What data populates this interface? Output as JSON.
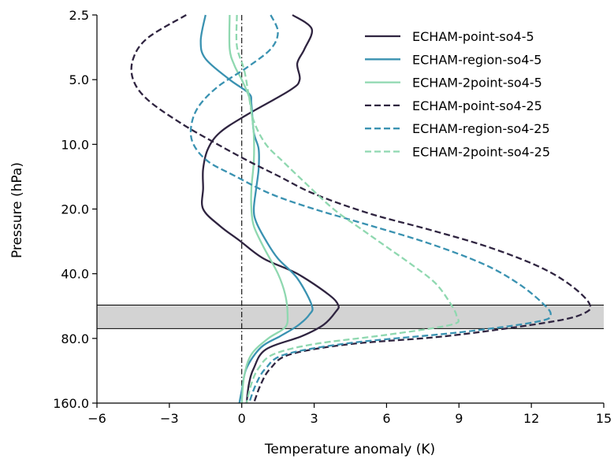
{
  "chart_data": {
    "type": "line",
    "title": "",
    "xlabel": "Temperature anomaly (K)",
    "ylabel": "Pressure (hPa)",
    "xlim": [
      -6,
      15
    ],
    "ylim": [
      2.5,
      160
    ],
    "y_scale": "log",
    "y_inverted": true,
    "x_ticks": [
      "−6",
      "−3",
      "0",
      "3",
      "6",
      "9",
      "12",
      "15"
    ],
    "x_tick_values": [
      -6,
      -3,
      0,
      3,
      6,
      9,
      12,
      15
    ],
    "y_ticks": [
      "2.5",
      "5.0",
      "10.0",
      "20.0",
      "40.0",
      "80.0",
      "160.0"
    ],
    "y_tick_values": [
      2.5,
      5,
      10,
      20,
      40,
      80,
      160
    ],
    "zero_line": {
      "x": 0,
      "style": "dashdot",
      "color": "#000000"
    },
    "shaded_band": {
      "p_top": 56,
      "p_bottom": 72,
      "color": "#d3d3d3"
    },
    "legend": {
      "placement": "top-right",
      "frame": false
    },
    "series": [
      {
        "name": "ECHAM-point-so4-5",
        "color": "#2f2440",
        "dash": "solid",
        "points": [
          [
            2.1,
            2.5
          ],
          [
            2.9,
            2.9
          ],
          [
            2.6,
            3.6
          ],
          [
            2.3,
            4.2
          ],
          [
            2.4,
            5.0
          ],
          [
            2.0,
            5.6
          ],
          [
            0.2,
            7.3
          ],
          [
            -0.9,
            8.8
          ],
          [
            -1.4,
            10.5
          ],
          [
            -1.6,
            13.0
          ],
          [
            -1.6,
            16.0
          ],
          [
            -1.6,
            20.0
          ],
          [
            -0.9,
            24.0
          ],
          [
            -0.1,
            28.0
          ],
          [
            0.9,
            34.0
          ],
          [
            2.3,
            40.0
          ],
          [
            3.6,
            50.0
          ],
          [
            4.0,
            56.0
          ],
          [
            3.9,
            60.0
          ],
          [
            3.4,
            69.0
          ],
          [
            2.5,
            78.0
          ],
          [
            1.0,
            90.0
          ],
          [
            0.5,
            110.0
          ],
          [
            0.3,
            130.0
          ],
          [
            0.2,
            160.0
          ]
        ]
      },
      {
        "name": "ECHAM-region-so4-5",
        "color": "#3a92b1",
        "dash": "solid",
        "points": [
          [
            -1.5,
            2.5
          ],
          [
            -1.7,
            3.3
          ],
          [
            -1.5,
            4.0
          ],
          [
            -0.5,
            5.0
          ],
          [
            0.3,
            5.8
          ],
          [
            0.4,
            6.5
          ],
          [
            0.5,
            8.8
          ],
          [
            0.7,
            10.5
          ],
          [
            0.7,
            13.0
          ],
          [
            0.6,
            16.0
          ],
          [
            0.5,
            20.0
          ],
          [
            0.6,
            23.0
          ],
          [
            1.0,
            28.0
          ],
          [
            1.5,
            34.0
          ],
          [
            2.3,
            42.0
          ],
          [
            2.9,
            56.0
          ],
          [
            2.8,
            62.0
          ],
          [
            2.3,
            70.0
          ],
          [
            1.6,
            78.0
          ],
          [
            0.8,
            88.0
          ],
          [
            0.2,
            110.0
          ],
          [
            0.0,
            140.0
          ],
          [
            -0.1,
            160.0
          ]
        ]
      },
      {
        "name": "ECHAM-2point-so4-5",
        "color": "#8fd8b0",
        "dash": "solid",
        "points": [
          [
            -0.5,
            2.5
          ],
          [
            -0.5,
            3.6
          ],
          [
            -0.3,
            4.3
          ],
          [
            0.0,
            5.0
          ],
          [
            0.3,
            6.0
          ],
          [
            0.4,
            7.0
          ],
          [
            0.5,
            9.0
          ],
          [
            0.5,
            12.0
          ],
          [
            0.4,
            16.0
          ],
          [
            0.4,
            20.0
          ],
          [
            0.5,
            24.0
          ],
          [
            0.9,
            30.0
          ],
          [
            1.5,
            40.0
          ],
          [
            1.8,
            50.0
          ],
          [
            1.9,
            62.0
          ],
          [
            1.8,
            71.0
          ],
          [
            1.1,
            80.0
          ],
          [
            0.4,
            95.0
          ],
          [
            0.1,
            120.0
          ],
          [
            0.0,
            160.0
          ]
        ]
      },
      {
        "name": "ECHAM-point-so4-25",
        "color": "#2f2440",
        "dash": "dashed",
        "points": [
          [
            -2.3,
            2.5
          ],
          [
            -3.9,
            3.2
          ],
          [
            -4.5,
            4.0
          ],
          [
            -4.5,
            5.0
          ],
          [
            -3.9,
            6.2
          ],
          [
            -2.5,
            8.0
          ],
          [
            -1.0,
            10.0
          ],
          [
            0.3,
            12.0
          ],
          [
            1.5,
            14.0
          ],
          [
            3.0,
            17.0
          ],
          [
            5.3,
            21.0
          ],
          [
            7.8,
            25.0
          ],
          [
            10.2,
            30.0
          ],
          [
            12.3,
            37.0
          ],
          [
            13.6,
            45.0
          ],
          [
            14.4,
            55.0
          ],
          [
            14.2,
            61.0
          ],
          [
            12.8,
            67.0
          ],
          [
            8.5,
            78.0
          ],
          [
            4.5,
            85.0
          ],
          [
            2.0,
            95.0
          ],
          [
            1.2,
            110.0
          ],
          [
            0.8,
            130.0
          ],
          [
            0.5,
            160.0
          ]
        ]
      },
      {
        "name": "ECHAM-region-so4-25",
        "color": "#3a92b1",
        "dash": "dashed",
        "points": [
          [
            1.2,
            2.5
          ],
          [
            1.5,
            3.0
          ],
          [
            1.2,
            3.6
          ],
          [
            0.2,
            4.4
          ],
          [
            -1.0,
            5.4
          ],
          [
            -1.8,
            6.7
          ],
          [
            -2.1,
            8.3
          ],
          [
            -2.0,
            10.0
          ],
          [
            -1.4,
            12.0
          ],
          [
            -0.3,
            14.0
          ],
          [
            1.2,
            17.0
          ],
          [
            3.0,
            20.0
          ],
          [
            5.4,
            24.0
          ],
          [
            7.8,
            29.0
          ],
          [
            10.0,
            36.0
          ],
          [
            11.4,
            44.0
          ],
          [
            12.4,
            54.0
          ],
          [
            12.8,
            62.0
          ],
          [
            12.2,
            67.0
          ],
          [
            9.0,
            75.0
          ],
          [
            4.5,
            84.0
          ],
          [
            1.8,
            95.0
          ],
          [
            1.0,
            110.0
          ],
          [
            0.6,
            130.0
          ],
          [
            0.3,
            160.0
          ]
        ]
      },
      {
        "name": "ECHAM-2point-so4-25",
        "color": "#8fd8b0",
        "dash": "dashed",
        "points": [
          [
            -0.2,
            2.5
          ],
          [
            -0.2,
            3.5
          ],
          [
            0.1,
            4.5
          ],
          [
            0.3,
            6.0
          ],
          [
            0.5,
            7.8
          ],
          [
            1.0,
            10.0
          ],
          [
            1.7,
            12.0
          ],
          [
            2.6,
            15.0
          ],
          [
            3.8,
            20.0
          ],
          [
            5.0,
            25.0
          ],
          [
            6.0,
            30.0
          ],
          [
            7.0,
            36.0
          ],
          [
            8.0,
            44.0
          ],
          [
            8.6,
            54.0
          ],
          [
            8.9,
            63.0
          ],
          [
            8.7,
            69.0
          ],
          [
            6.0,
            77.0
          ],
          [
            3.0,
            85.0
          ],
          [
            1.3,
            95.0
          ],
          [
            0.7,
            110.0
          ],
          [
            0.4,
            130.0
          ],
          [
            0.2,
            160.0
          ]
        ]
      }
    ]
  }
}
